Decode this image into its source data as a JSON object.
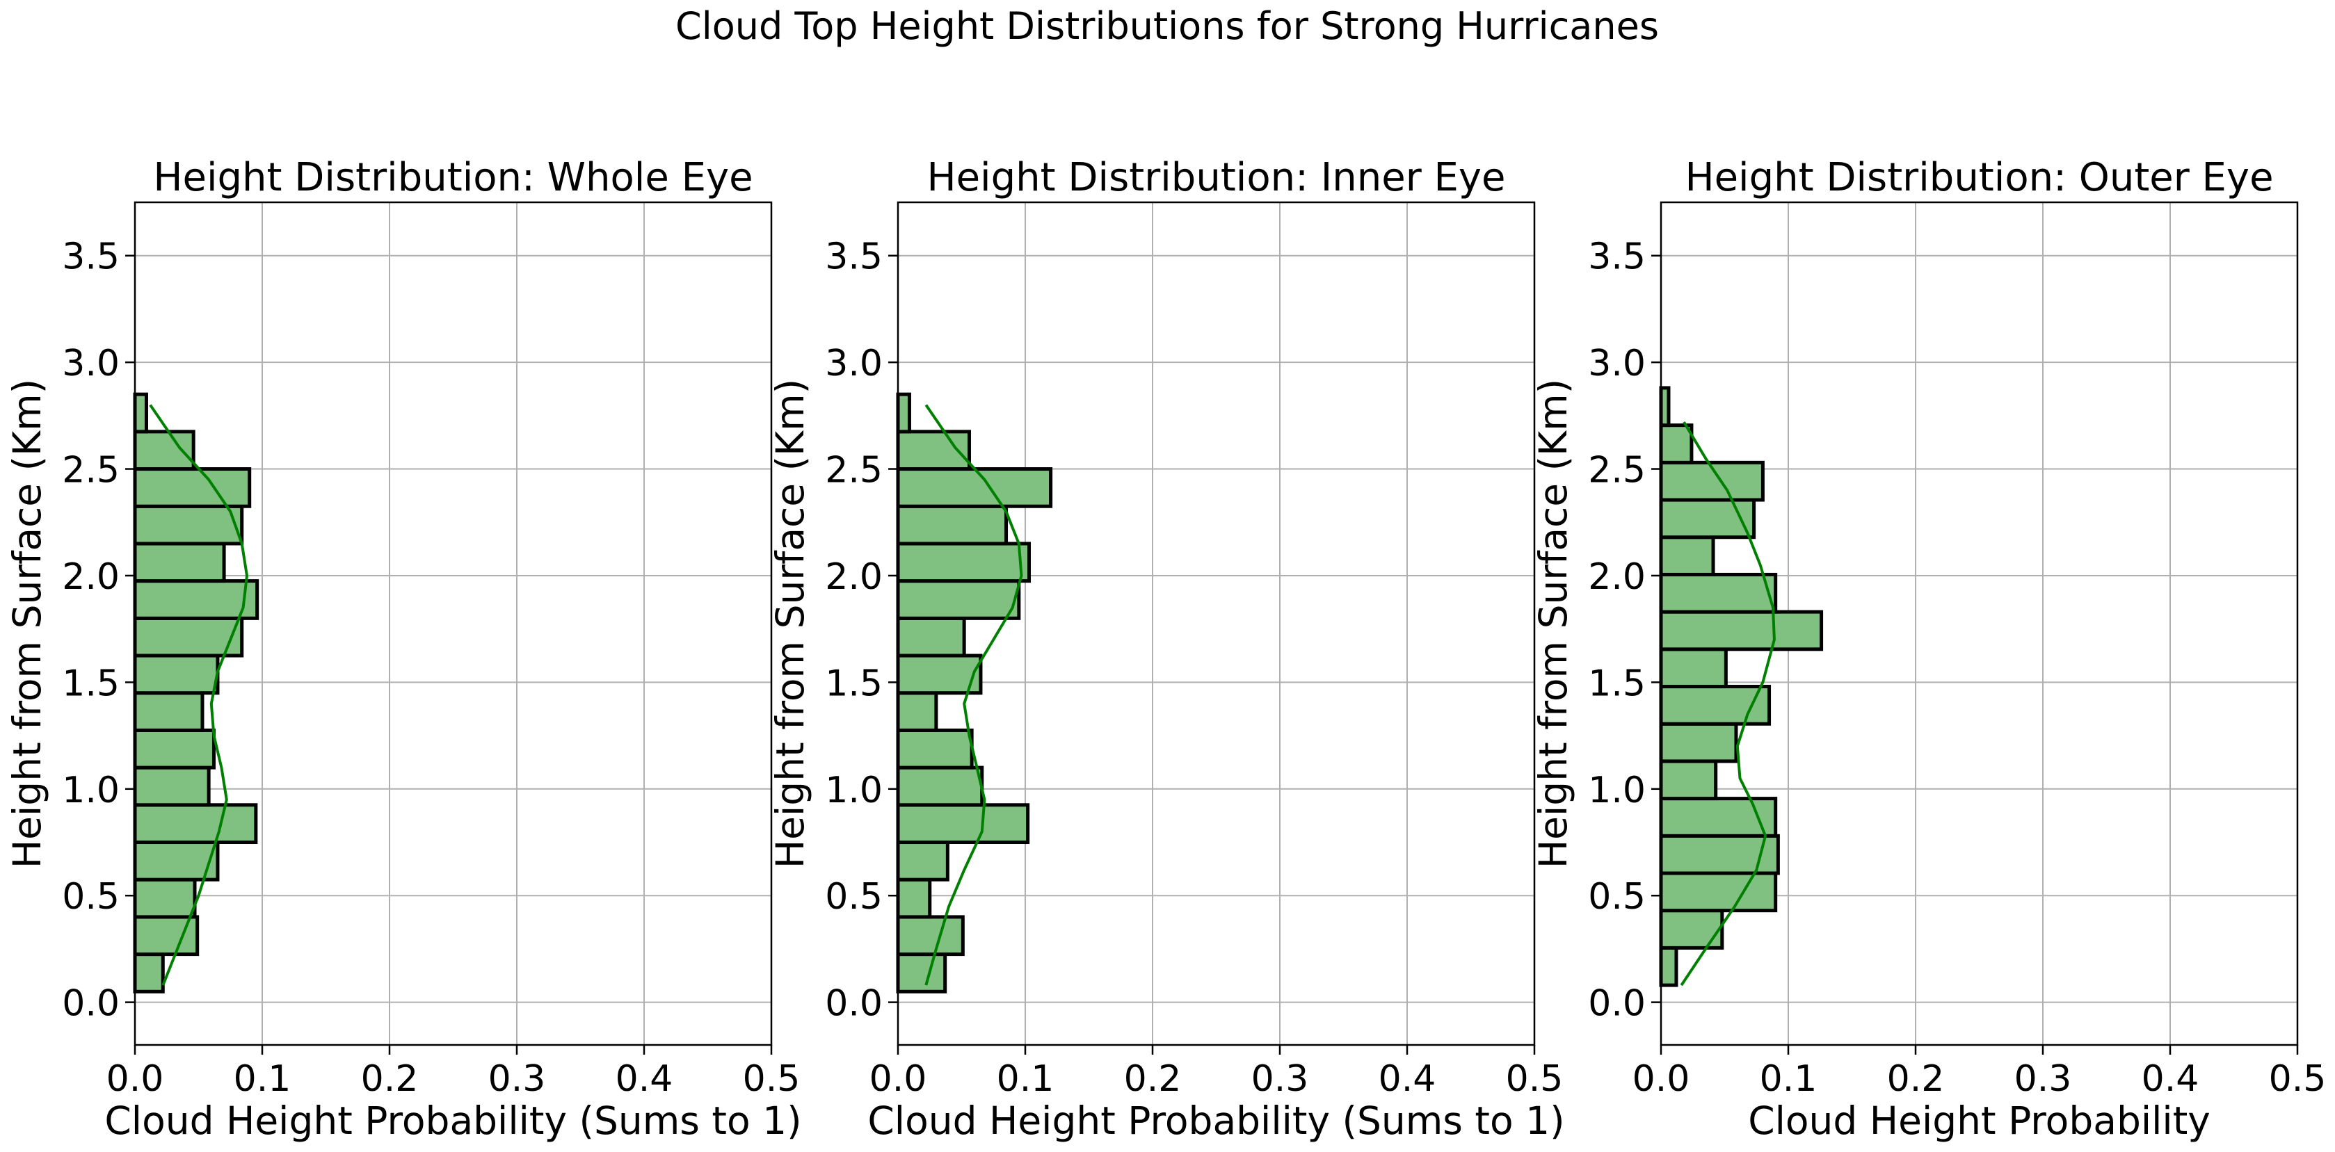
{
  "suptitle": "Cloud Top Height Distributions for Strong Hurricanes",
  "colors": {
    "bar_fill": "#80c080",
    "bar_edge": "#000000",
    "kde": "#008000",
    "grid": "#b0b0b0"
  },
  "chart_data": [
    {
      "type": "bar",
      "orientation": "horizontal",
      "title": "Height Distribution: Whole Eye",
      "xlabel": "Cloud Height Probability (Sums to 1)",
      "ylabel": "Height from Surface (Km)",
      "xlim": [
        0,
        0.5
      ],
      "ylim": [
        -0.2,
        3.75
      ],
      "xticks": [
        "0.0",
        "0.1",
        "0.2",
        "0.3",
        "0.4",
        "0.5"
      ],
      "yticks": [
        "0.0",
        "0.5",
        "1.0",
        "1.5",
        "2.0",
        "2.5",
        "3.0",
        "3.5"
      ],
      "grid": true,
      "bins": [
        {
          "y0": 0.05,
          "y1": 0.225,
          "value": 0.022
        },
        {
          "y0": 0.225,
          "y1": 0.4,
          "value": 0.049
        },
        {
          "y0": 0.4,
          "y1": 0.575,
          "value": 0.047
        },
        {
          "y0": 0.575,
          "y1": 0.75,
          "value": 0.065
        },
        {
          "y0": 0.75,
          "y1": 0.925,
          "value": 0.095
        },
        {
          "y0": 0.925,
          "y1": 1.1,
          "value": 0.058
        },
        {
          "y0": 1.1,
          "y1": 1.275,
          "value": 0.062
        },
        {
          "y0": 1.275,
          "y1": 1.45,
          "value": 0.053
        },
        {
          "y0": 1.45,
          "y1": 1.625,
          "value": 0.065
        },
        {
          "y0": 1.625,
          "y1": 1.8,
          "value": 0.084
        },
        {
          "y0": 1.8,
          "y1": 1.975,
          "value": 0.096
        },
        {
          "y0": 1.975,
          "y1": 2.15,
          "value": 0.07
        },
        {
          "y0": 2.15,
          "y1": 2.325,
          "value": 0.084
        },
        {
          "y0": 2.325,
          "y1": 2.5,
          "value": 0.09
        },
        {
          "y0": 2.5,
          "y1": 2.675,
          "value": 0.046
        },
        {
          "y0": 2.675,
          "y1": 2.85,
          "value": 0.009
        }
      ],
      "kde": [
        [
          0.022,
          0.08
        ],
        [
          0.03,
          0.2
        ],
        [
          0.04,
          0.35
        ],
        [
          0.05,
          0.5
        ],
        [
          0.058,
          0.65
        ],
        [
          0.066,
          0.8
        ],
        [
          0.072,
          0.95
        ],
        [
          0.068,
          1.1
        ],
        [
          0.062,
          1.25
        ],
        [
          0.06,
          1.4
        ],
        [
          0.065,
          1.55
        ],
        [
          0.075,
          1.7
        ],
        [
          0.085,
          1.85
        ],
        [
          0.088,
          2.0
        ],
        [
          0.084,
          2.15
        ],
        [
          0.075,
          2.3
        ],
        [
          0.058,
          2.45
        ],
        [
          0.035,
          2.6
        ],
        [
          0.012,
          2.8
        ]
      ]
    },
    {
      "type": "bar",
      "orientation": "horizontal",
      "title": "Height Distribution: Inner Eye",
      "xlabel": "Cloud Height Probability (Sums to 1)",
      "ylabel": "Height from Surface (Km)",
      "xlim": [
        0,
        0.5
      ],
      "ylim": [
        -0.2,
        3.75
      ],
      "xticks": [
        "0.0",
        "0.1",
        "0.2",
        "0.3",
        "0.4",
        "0.5"
      ],
      "yticks": [
        "0.0",
        "0.5",
        "1.0",
        "1.5",
        "2.0",
        "2.5",
        "3.0",
        "3.5"
      ],
      "grid": true,
      "bins": [
        {
          "y0": 0.05,
          "y1": 0.225,
          "value": 0.037
        },
        {
          "y0": 0.225,
          "y1": 0.4,
          "value": 0.051
        },
        {
          "y0": 0.4,
          "y1": 0.575,
          "value": 0.025
        },
        {
          "y0": 0.575,
          "y1": 0.75,
          "value": 0.039
        },
        {
          "y0": 0.75,
          "y1": 0.925,
          "value": 0.102
        },
        {
          "y0": 0.925,
          "y1": 1.1,
          "value": 0.066
        },
        {
          "y0": 1.1,
          "y1": 1.275,
          "value": 0.058
        },
        {
          "y0": 1.275,
          "y1": 1.45,
          "value": 0.03
        },
        {
          "y0": 1.45,
          "y1": 1.625,
          "value": 0.065
        },
        {
          "y0": 1.625,
          "y1": 1.8,
          "value": 0.052
        },
        {
          "y0": 1.8,
          "y1": 1.975,
          "value": 0.095
        },
        {
          "y0": 1.975,
          "y1": 2.15,
          "value": 0.103
        },
        {
          "y0": 2.15,
          "y1": 2.325,
          "value": 0.085
        },
        {
          "y0": 2.325,
          "y1": 2.5,
          "value": 0.12
        },
        {
          "y0": 2.5,
          "y1": 2.675,
          "value": 0.056
        },
        {
          "y0": 2.675,
          "y1": 2.85,
          "value": 0.009
        }
      ],
      "kde": [
        [
          0.022,
          0.08
        ],
        [
          0.03,
          0.25
        ],
        [
          0.04,
          0.45
        ],
        [
          0.052,
          0.62
        ],
        [
          0.066,
          0.8
        ],
        [
          0.068,
          0.95
        ],
        [
          0.062,
          1.1
        ],
        [
          0.056,
          1.25
        ],
        [
          0.052,
          1.4
        ],
        [
          0.06,
          1.55
        ],
        [
          0.075,
          1.7
        ],
        [
          0.09,
          1.85
        ],
        [
          0.097,
          2.0
        ],
        [
          0.095,
          2.15
        ],
        [
          0.085,
          2.3
        ],
        [
          0.068,
          2.45
        ],
        [
          0.045,
          2.6
        ],
        [
          0.022,
          2.8
        ]
      ]
    },
    {
      "type": "bar",
      "orientation": "horizontal",
      "title": "Height Distribution: Outer Eye",
      "xlabel": "Cloud Height Probability",
      "ylabel": "Height from Surface (Km)",
      "xlim": [
        0,
        0.5
      ],
      "ylim": [
        -0.2,
        3.75
      ],
      "xticks": [
        "0.0",
        "0.1",
        "0.2",
        "0.3",
        "0.4",
        "0.5"
      ],
      "yticks": [
        "0.0",
        "0.5",
        "1.0",
        "1.5",
        "2.0",
        "2.5",
        "3.0",
        "3.5"
      ],
      "grid": true,
      "bins": [
        {
          "y0": 0.08,
          "y1": 0.255,
          "value": 0.012
        },
        {
          "y0": 0.255,
          "y1": 0.43,
          "value": 0.048
        },
        {
          "y0": 0.43,
          "y1": 0.605,
          "value": 0.09
        },
        {
          "y0": 0.605,
          "y1": 0.78,
          "value": 0.092
        },
        {
          "y0": 0.78,
          "y1": 0.955,
          "value": 0.09
        },
        {
          "y0": 0.955,
          "y1": 1.13,
          "value": 0.043
        },
        {
          "y0": 1.13,
          "y1": 1.305,
          "value": 0.059
        },
        {
          "y0": 1.305,
          "y1": 1.48,
          "value": 0.085
        },
        {
          "y0": 1.48,
          "y1": 1.655,
          "value": 0.051
        },
        {
          "y0": 1.655,
          "y1": 1.83,
          "value": 0.126
        },
        {
          "y0": 1.83,
          "y1": 2.005,
          "value": 0.09
        },
        {
          "y0": 2.005,
          "y1": 2.18,
          "value": 0.041
        },
        {
          "y0": 2.18,
          "y1": 2.355,
          "value": 0.073
        },
        {
          "y0": 2.355,
          "y1": 2.53,
          "value": 0.08
        },
        {
          "y0": 2.53,
          "y1": 2.705,
          "value": 0.024
        },
        {
          "y0": 2.705,
          "y1": 2.88,
          "value": 0.006
        }
      ],
      "kde": [
        [
          0.016,
          0.08
        ],
        [
          0.035,
          0.25
        ],
        [
          0.058,
          0.45
        ],
        [
          0.075,
          0.62
        ],
        [
          0.082,
          0.78
        ],
        [
          0.072,
          0.93
        ],
        [
          0.062,
          1.05
        ],
        [
          0.06,
          1.2
        ],
        [
          0.068,
          1.35
        ],
        [
          0.08,
          1.5
        ],
        [
          0.089,
          1.7
        ],
        [
          0.088,
          1.85
        ],
        [
          0.078,
          2.05
        ],
        [
          0.068,
          2.2
        ],
        [
          0.052,
          2.4
        ],
        [
          0.035,
          2.55
        ],
        [
          0.018,
          2.72
        ]
      ]
    }
  ]
}
